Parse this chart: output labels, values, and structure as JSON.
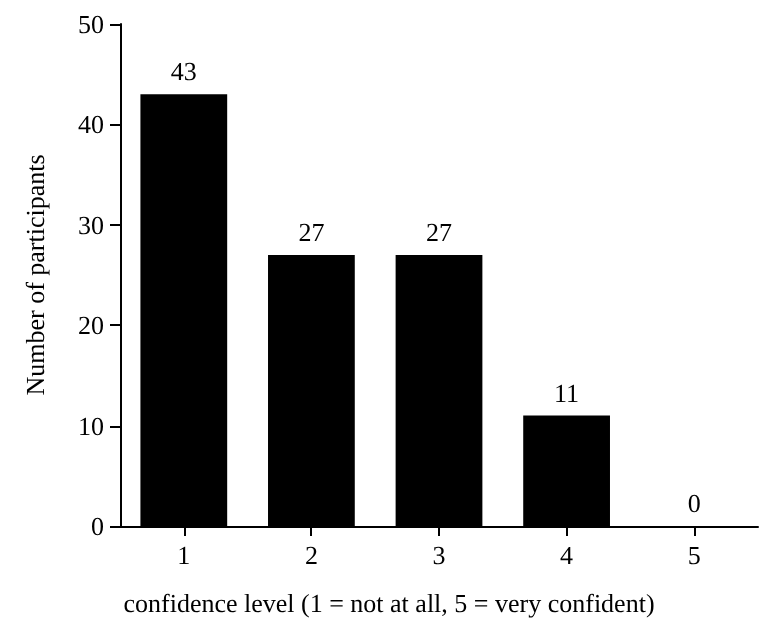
{
  "chart_data": {
    "type": "bar",
    "xlabel": "confidence level (1 = not at all, 5 = very confident)",
    "ylabel": "Number of participants",
    "categories": [
      "1",
      "2",
      "3",
      "4",
      "5"
    ],
    "values": [
      43,
      27,
      27,
      11,
      0
    ],
    "color": "#000000",
    "ylim": [
      0,
      50
    ],
    "yticks": [
      0,
      10,
      20,
      30,
      40,
      50
    ],
    "grid": false,
    "data_labels": true
  }
}
